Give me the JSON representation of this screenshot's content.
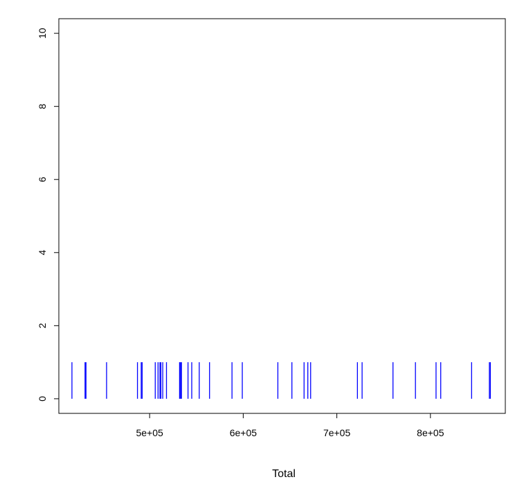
{
  "chart_data": {
    "type": "bar",
    "title": "",
    "xlabel": "Total",
    "ylabel": "",
    "xlim": [
      403000,
      880000
    ],
    "ylim": [
      -0.4,
      10.4
    ],
    "x_ticks": [
      500000,
      600000,
      700000,
      800000
    ],
    "x_tick_labels": [
      "5e+05",
      "6e+05",
      "7e+05",
      "8e+05"
    ],
    "y_ticks": [
      0,
      2,
      4,
      6,
      8,
      10
    ],
    "y_tick_labels": [
      "0",
      "2",
      "4",
      "6",
      "8",
      "10"
    ],
    "bar_color": "#0000ff",
    "bar_height": 1,
    "x": [
      417000,
      431000,
      432000,
      454000,
      487000,
      491000,
      492000,
      506000,
      509000,
      511000,
      512000,
      514000,
      518000,
      532000,
      533000,
      534000,
      541000,
      545000,
      553000,
      564000,
      588000,
      599000,
      637000,
      652000,
      665000,
      669000,
      672000,
      722000,
      727000,
      760000,
      784000,
      806000,
      811000,
      844000,
      863000,
      864000
    ]
  }
}
